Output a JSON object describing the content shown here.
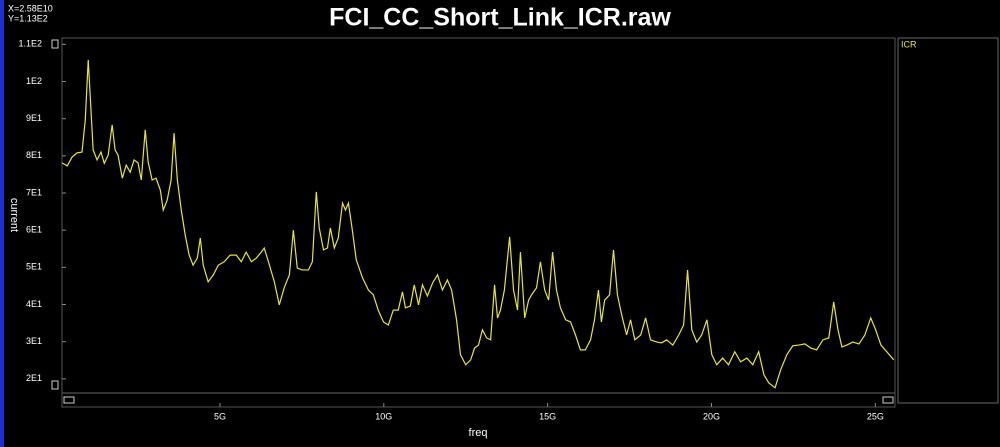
{
  "chart_data": {
    "type": "line",
    "title": "FCI_CC_Short_Link_ICR.raw",
    "annotations": [
      "X=2.58E10",
      "Y=1.13E2"
    ],
    "xlabel": "freq",
    "ylabel": "current",
    "xlim": [
      0.18,
      25.6
    ],
    "ylim": [
      16.2,
      111.7
    ],
    "xticks": [
      {
        "value": 5,
        "label": "5G"
      },
      {
        "value": 10,
        "label": "10G"
      },
      {
        "value": 15,
        "label": "15G"
      },
      {
        "value": 20,
        "label": "20G"
      },
      {
        "value": 25,
        "label": "25G"
      }
    ],
    "yticks": [
      {
        "value": 20,
        "label": "2E1"
      },
      {
        "value": 30,
        "label": "3E1"
      },
      {
        "value": 40,
        "label": "4E1"
      },
      {
        "value": 50,
        "label": "5E1"
      },
      {
        "value": 60,
        "label": "6E1"
      },
      {
        "value": 70,
        "label": "7E1"
      },
      {
        "value": 80,
        "label": "8E1"
      },
      {
        "value": 90,
        "label": "9E1"
      },
      {
        "value": 100,
        "label": "1E2"
      },
      {
        "value": 110,
        "label": "1.1E2"
      }
    ],
    "grid": false,
    "x": [
      0.18,
      0.34,
      0.49,
      0.64,
      0.79,
      0.89,
      0.98,
      1.04,
      1.13,
      1.25,
      1.37,
      1.47,
      1.59,
      1.71,
      1.8,
      1.89,
      2.02,
      2.14,
      2.26,
      2.38,
      2.5,
      2.6,
      2.72,
      2.81,
      2.93,
      3.05,
      3.18,
      3.27,
      3.39,
      3.51,
      3.6,
      3.7,
      3.82,
      3.94,
      4.06,
      4.18,
      4.31,
      4.4,
      4.49,
      4.64,
      4.8,
      4.95,
      5.13,
      5.31,
      5.5,
      5.65,
      5.8,
      5.96,
      6.11,
      6.26,
      6.35,
      6.48,
      6.66,
      6.81,
      6.96,
      7.12,
      7.24,
      7.36,
      7.51,
      7.7,
      7.82,
      7.94,
      8.03,
      8.16,
      8.28,
      8.37,
      8.49,
      8.61,
      8.74,
      8.83,
      8.92,
      9.04,
      9.16,
      9.35,
      9.53,
      9.68,
      9.83,
      9.99,
      10.14,
      10.29,
      10.44,
      10.57,
      10.66,
      10.81,
      10.93,
      11.06,
      11.18,
      11.33,
      11.49,
      11.64,
      11.79,
      11.94,
      12.07,
      12.22,
      12.34,
      12.5,
      12.65,
      12.77,
      12.89,
      13.01,
      13.14,
      13.26,
      13.38,
      13.47,
      13.56,
      13.68,
      13.84,
      13.96,
      14.08,
      14.17,
      14.3,
      14.42,
      14.51,
      14.66,
      14.78,
      14.91,
      15.03,
      15.15,
      15.27,
      15.39,
      15.55,
      15.7,
      15.85,
      16,
      16.15,
      16.31,
      16.43,
      16.55,
      16.64,
      16.74,
      16.89,
      17.01,
      17.13,
      17.26,
      17.41,
      17.53,
      17.66,
      17.84,
      17.99,
      18.14,
      18.33,
      18.48,
      18.63,
      18.82,
      19,
      19.15,
      19.27,
      19.4,
      19.55,
      19.7,
      19.86,
      20.01,
      20.16,
      20.34,
      20.52,
      20.71,
      20.89,
      21.08,
      21.26,
      21.44,
      21.6,
      21.75,
      21.94,
      22.11,
      22.3,
      22.48,
      22.66,
      22.85,
      23.03,
      23.21,
      23.4,
      23.58,
      23.73,
      23.86,
      23.98,
      24.13,
      24.31,
      24.5,
      24.68,
      24.86,
      25.01,
      25.17,
      25.35,
      25.56
    ],
    "series": [
      {
        "name": "ICR",
        "color": "#e6e62e",
        "values": [
          78.1,
          77.3,
          79.7,
          80.8,
          81,
          89.6,
          105.8,
          96.3,
          81.6,
          78.9,
          81,
          78,
          80.2,
          88.3,
          81.6,
          80.2,
          74,
          77.5,
          75.6,
          78.9,
          78.1,
          73.5,
          87,
          78.3,
          73.5,
          74,
          70.8,
          65.4,
          68.1,
          73.5,
          86.1,
          73.5,
          65.4,
          58.7,
          53.3,
          50.6,
          52.5,
          57.9,
          50.6,
          46.1,
          48,
          50.6,
          51.5,
          53.3,
          53.3,
          51.5,
          54.1,
          51.5,
          52.5,
          54.1,
          55.2,
          51.5,
          46.1,
          39.9,
          44.5,
          48,
          60,
          49.8,
          49.3,
          49.3,
          51.5,
          70.3,
          60.6,
          54.7,
          55.2,
          60.6,
          55.2,
          57.9,
          67.3,
          65.4,
          67.3,
          60,
          52,
          47.2,
          43.9,
          42.6,
          38.5,
          35.3,
          34.5,
          38.5,
          38.5,
          43.4,
          39.1,
          39.6,
          45.3,
          39.9,
          45.3,
          42.3,
          45.8,
          48,
          43.9,
          46.6,
          43.9,
          35.9,
          26.5,
          23.8,
          25.1,
          28.3,
          29.1,
          33.2,
          31,
          30.5,
          45.3,
          36.4,
          38.5,
          43.9,
          58.2,
          43.9,
          38.5,
          54.1,
          36.4,
          41.2,
          42.6,
          44.5,
          51.5,
          43.9,
          41.2,
          54.1,
          43.9,
          39.1,
          35.9,
          35.3,
          31.8,
          27.8,
          27.8,
          30.5,
          35.9,
          43.9,
          35.3,
          41.2,
          42.6,
          54.7,
          42.6,
          37.2,
          31.8,
          35.9,
          30.5,
          31.8,
          36.4,
          30.5,
          29.9,
          29.7,
          30.5,
          29.1,
          31.8,
          34.5,
          49.3,
          33.2,
          29.9,
          31.8,
          35.9,
          26.5,
          23.8,
          25.6,
          23.8,
          27.3,
          24.6,
          25.6,
          23.8,
          27.3,
          21.1,
          18.9,
          17.6,
          22.4,
          26.5,
          28.9,
          29.1,
          29.4,
          28.3,
          27.8,
          30.5,
          31,
          40.7,
          33.2,
          28.6,
          29.1,
          29.9,
          29.4,
          31.8,
          36.4,
          33.2,
          29.1,
          27.3,
          25.1
        ]
      }
    ]
  }
}
